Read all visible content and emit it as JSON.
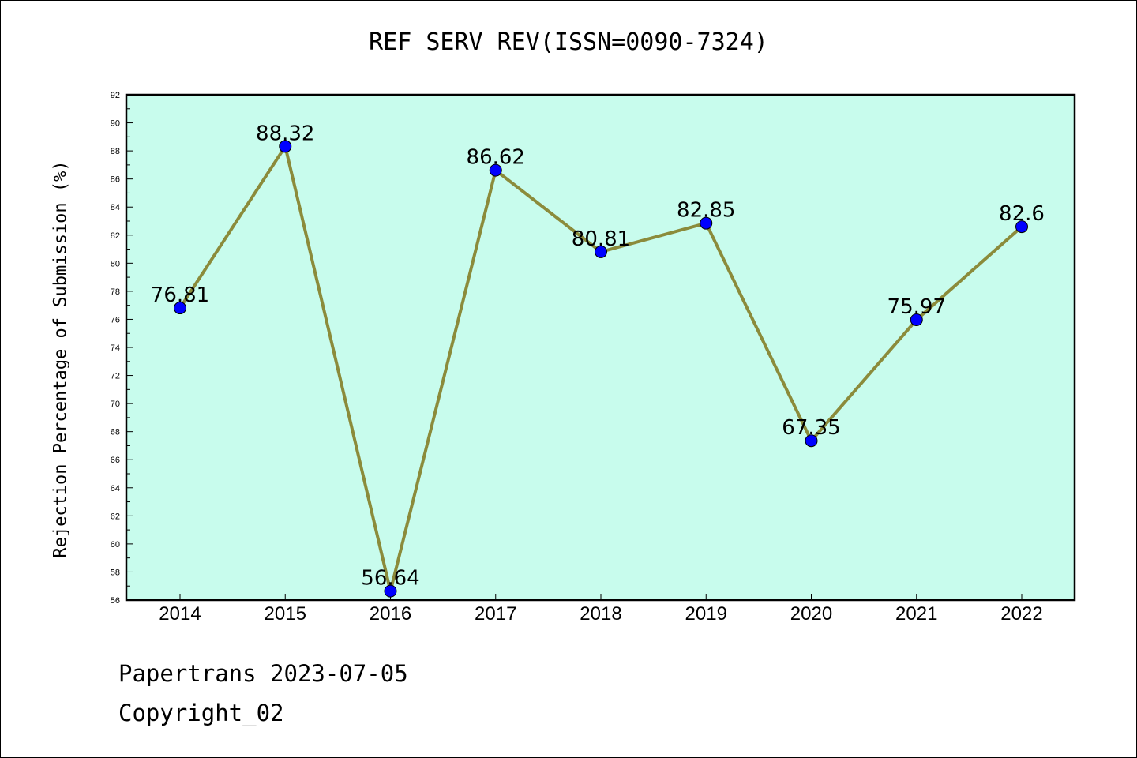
{
  "title": "REF SERV REV(ISSN=0090-7324)",
  "footer": {
    "line1": "Papertrans 2023-07-05",
    "line2": "Copyright_02"
  },
  "colors": {
    "plot_background": "#c8fced",
    "line": "#8b8b3b",
    "marker": "#0000ff"
  },
  "chart_data": {
    "type": "line",
    "title": "REF SERV REV(ISSN=0090-7324)",
    "xlabel": "",
    "ylabel": "Rejection Percentage of Submission (%)",
    "x": [
      "2014",
      "2015",
      "2016",
      "2017",
      "2018",
      "2019",
      "2020",
      "2021",
      "2022"
    ],
    "series": [
      {
        "values": [
          76.81,
          88.32,
          56.64,
          86.62,
          80.81,
          82.85,
          67.35,
          75.97,
          82.6
        ]
      }
    ],
    "data_labels": [
      "76.81",
      "88.32",
      "56.64",
      "86.62",
      "80.81",
      "82.85",
      "67.35",
      "75.97",
      "82.6"
    ],
    "ylim": [
      56,
      92
    ],
    "y_ticks": [
      56,
      58,
      60,
      62,
      64,
      66,
      68,
      70,
      72,
      74,
      76,
      78,
      80,
      82,
      84,
      86,
      88,
      90,
      92
    ],
    "grid": false,
    "legend": "none"
  }
}
